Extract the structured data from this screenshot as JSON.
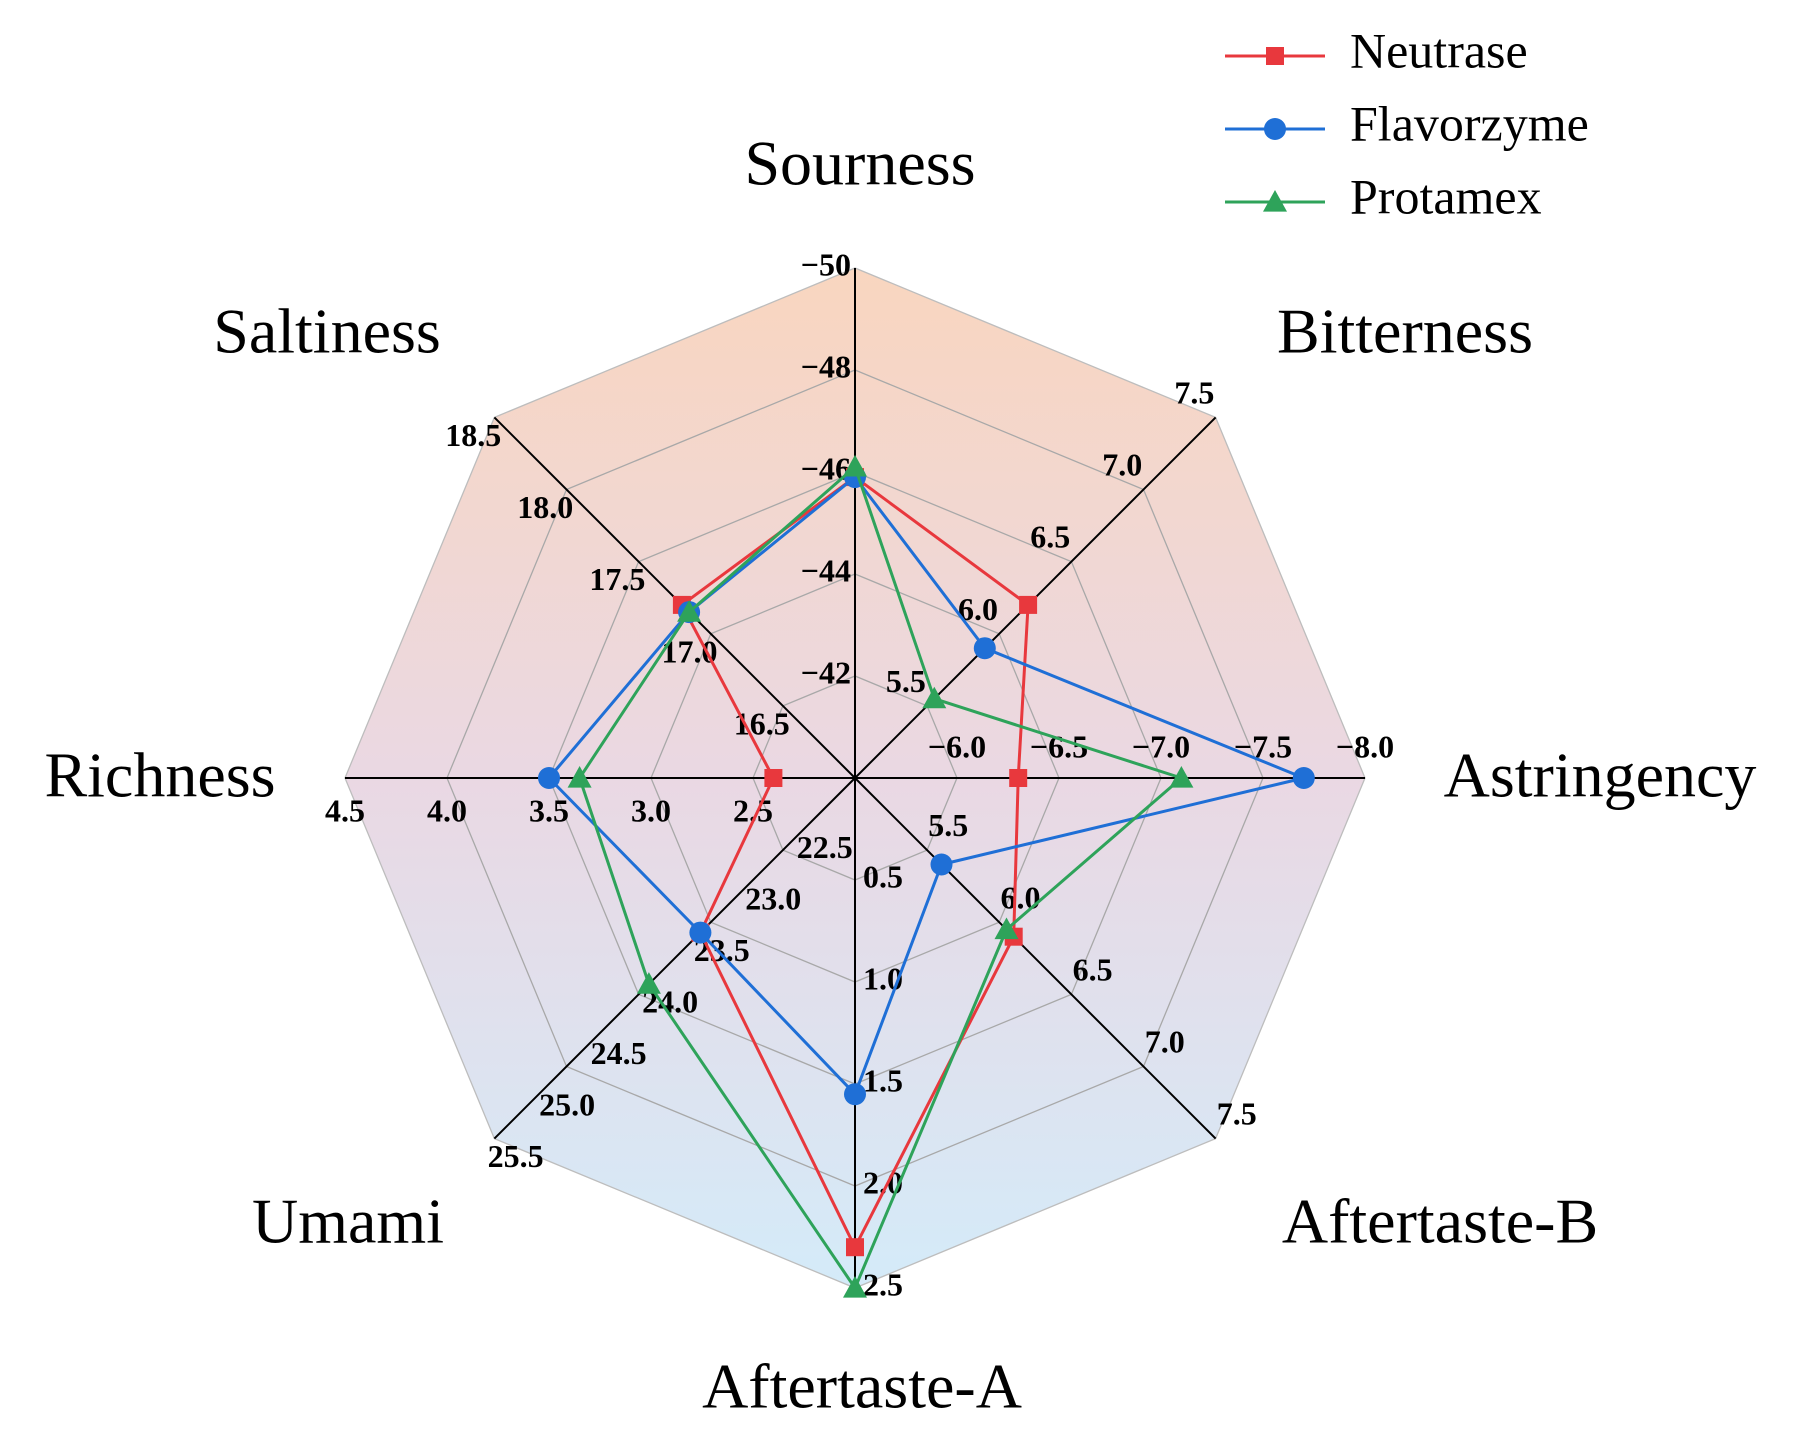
{
  "chart_data": {
    "type": "radar",
    "title": "",
    "legend_position": "top-right",
    "grid": true,
    "axes": [
      {
        "name": "Sourness",
        "ticks": [
          "-42",
          "-44",
          "-46",
          "-48",
          "-50"
        ],
        "range": [
          -40,
          -50
        ]
      },
      {
        "name": "Bitterness",
        "ticks": [
          "5.5",
          "6.0",
          "6.5",
          "7.0",
          "7.5"
        ],
        "range": [
          5.0,
          7.5
        ]
      },
      {
        "name": "Astringency",
        "ticks": [
          "-6.0",
          "-6.5",
          "-7.0",
          "-7.5",
          "-8.0"
        ],
        "range": [
          -5.5,
          -8.0
        ]
      },
      {
        "name": "Aftertaste-B",
        "ticks": [
          "5.5",
          "6.0",
          "6.5",
          "7.0",
          "7.5"
        ],
        "range": [
          5.0,
          7.5
        ]
      },
      {
        "name": "Aftertaste-A",
        "ticks": [
          "0.5",
          "1.0",
          "1.5",
          "2.0",
          "2.5"
        ],
        "range": [
          0.0,
          2.5
        ]
      },
      {
        "name": "Umami",
        "ticks": [
          "22.5",
          "23.0",
          "23.5",
          "24.0",
          "24.5",
          "25.0",
          "25.5"
        ],
        "range": [
          22.0,
          25.5
        ]
      },
      {
        "name": "Richness",
        "ticks": [
          "2.5",
          "3.0",
          "3.5",
          "4.0",
          "4.5"
        ],
        "range": [
          2.0,
          4.5
        ]
      },
      {
        "name": "Saltiness",
        "ticks": [
          "16.5",
          "17.0",
          "17.5",
          "18.0",
          "18.5"
        ],
        "range": [
          16.0,
          18.5
        ]
      }
    ],
    "series": [
      {
        "name": "Neutrase",
        "color": "#e8383d",
        "marker": "square",
        "values": [
          -45.9,
          6.2,
          -6.3,
          6.1,
          2.3,
          23.5,
          2.4,
          17.2
        ]
      },
      {
        "name": "Flavorzyme",
        "color": "#1f6fd6",
        "marker": "circle",
        "values": [
          -45.9,
          5.9,
          -7.7,
          5.6,
          1.55,
          23.5,
          3.5,
          17.15
        ]
      },
      {
        "name": "Protamex",
        "color": "#2ea35a",
        "marker": "triangle",
        "values": [
          -46.1,
          5.55,
          -7.1,
          6.05,
          2.5,
          24.0,
          3.35,
          17.15
        ]
      }
    ]
  }
}
